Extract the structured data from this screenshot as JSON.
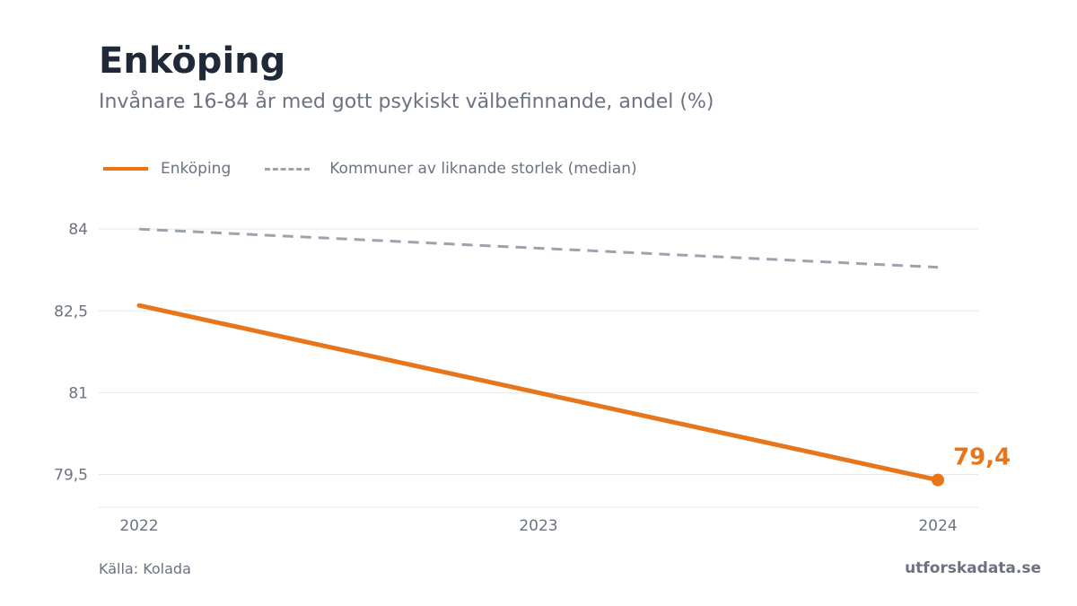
{
  "header": {
    "title": "Enköping",
    "subtitle": "Invånare 16-84 år med gott psykiskt välbefinnande, andel (%)"
  },
  "legend": {
    "items": [
      {
        "label": "Enköping",
        "style": "solid",
        "color": "#e8751a"
      },
      {
        "label": "Kommuner av liknande storlek (median)",
        "style": "dashed",
        "color": "#9ca3af"
      }
    ]
  },
  "chart_data": {
    "type": "line",
    "x": [
      "2022",
      "2023",
      "2024"
    ],
    "series": [
      {
        "name": "Enköping",
        "values": [
          82.6,
          81.0,
          79.4
        ],
        "color": "#e8751a"
      },
      {
        "name": "Kommuner av liknande storlek (median)",
        "values": [
          84.0,
          83.65,
          83.3
        ],
        "color": "#9ca3af"
      }
    ],
    "yticks": [
      79.5,
      81,
      82.5,
      84
    ],
    "ytick_labels": [
      "79,5",
      "81",
      "82,5",
      "84"
    ],
    "ylim": [
      78.9,
      84.25
    ],
    "grid": true,
    "legend_position": "top-left",
    "end_label": "79,4"
  },
  "footer": {
    "source": "Källa: Kolada",
    "brand": "utforskadata.se"
  }
}
